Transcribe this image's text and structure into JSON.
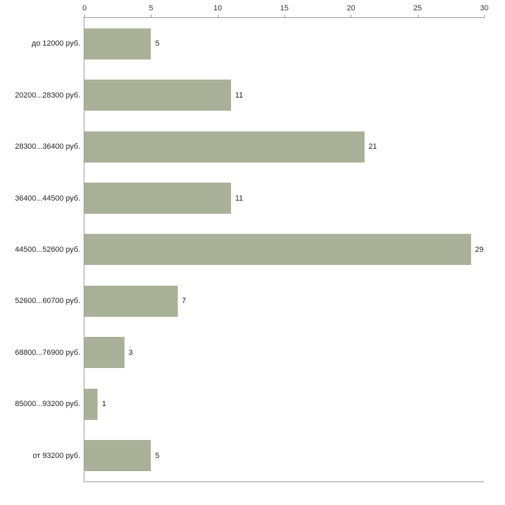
{
  "chart_data": {
    "type": "bar",
    "orientation": "horizontal",
    "title": "",
    "xlabel": "",
    "ylabel": "",
    "categories": [
      "до 12000 руб.",
      "20200...28300 руб.",
      "28300...36400 руб.",
      "36400...44500 руб.",
      "44500...52600 руб.",
      "52600...60700 руб.",
      "68800...76900 руб.",
      "85000...93200 руб.",
      "от 93200 руб."
    ],
    "values": [
      5,
      11,
      21,
      11,
      29,
      7,
      3,
      1,
      5
    ],
    "x_ticks": [
      0,
      5,
      10,
      15,
      20,
      25,
      30
    ],
    "xlim": [
      0,
      30
    ],
    "grid": "off",
    "legend": "none",
    "bar_color": "#a9b299",
    "axis_color": "#9a9a9a",
    "tick_label_color": "#333333",
    "category_label_color": "#222222"
  }
}
